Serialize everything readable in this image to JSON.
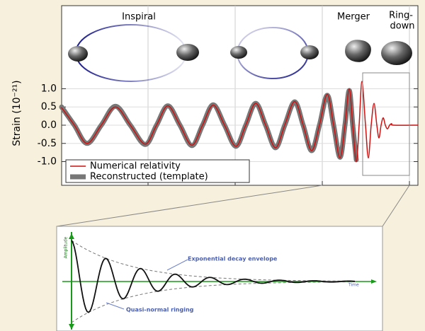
{
  "chart_data": {
    "type": "line",
    "y_label": "Strain (10⁻²¹)",
    "annotations": {
      "inspiral": "Inspiral",
      "merger": "Merger",
      "ringdown_1": "Ring-",
      "ringdown_2": "down"
    },
    "x": [
      0,
      18,
      36,
      56,
      76,
      97,
      118,
      134,
      150,
      167,
      184,
      199,
      214,
      230,
      246,
      260,
      274,
      288,
      302,
      315,
      329,
      341,
      353,
      364,
      375,
      384,
      393,
      400,
      406,
      411,
      416,
      420,
      424,
      429,
      433,
      437,
      441,
      445,
      448,
      451,
      454,
      457,
      460,
      463,
      466,
      469,
      503
    ],
    "series": [
      {
        "name": "Numerical relativity",
        "color": "#cc1111",
        "values": [
          0.48,
          0,
          -0.5,
          0,
          0.5,
          0,
          -0.52,
          0,
          0.53,
          0,
          -0.55,
          0,
          0.55,
          0,
          -0.58,
          0,
          0.6,
          0,
          -0.62,
          0,
          0.65,
          0,
          -0.7,
          0,
          0.85,
          0,
          -0.9,
          0,
          1.0,
          0,
          -1.0,
          0,
          1.2,
          0,
          -0.9,
          0,
          0.6,
          0,
          -0.35,
          0,
          0.2,
          0,
          -0.1,
          0,
          0.04,
          0,
          0
        ]
      },
      {
        "name": "Reconstructed (template)",
        "color": "#777777",
        "values": [
          0.5,
          0,
          -0.5,
          0,
          0.52,
          0,
          -0.53,
          0,
          0.53,
          0,
          -0.56,
          0,
          0.56,
          0,
          -0.58,
          0,
          0.6,
          0,
          -0.62,
          0,
          0.64,
          0,
          -0.7,
          0,
          0.82,
          0,
          -0.88,
          0,
          0.95,
          0,
          -0.95,
          null,
          null,
          null,
          null,
          null,
          null,
          null,
          null,
          null,
          null,
          null,
          null,
          null,
          null,
          null,
          null
        ]
      }
    ],
    "xlim": [
      0,
      503
    ],
    "xticks": [
      122,
      245,
      368,
      491
    ],
    "ylim": [
      -1.65,
      3.28
    ],
    "yticks": [
      {
        "value": 1,
        "label": "1.0"
      },
      {
        "value": 0.5,
        "label": "0.5"
      },
      {
        "value": 0,
        "label": "0.0"
      },
      {
        "value": -0.5,
        "label": "-0.5"
      },
      {
        "value": -1,
        "label": "-1.0"
      }
    ],
    "grid": true,
    "legend": "lower-left"
  },
  "inset": {
    "envelope": "Exponential decay envelope",
    "ringing": "Quasi-normal ringing",
    "time": "Time",
    "amplitude": "Amplitude"
  }
}
